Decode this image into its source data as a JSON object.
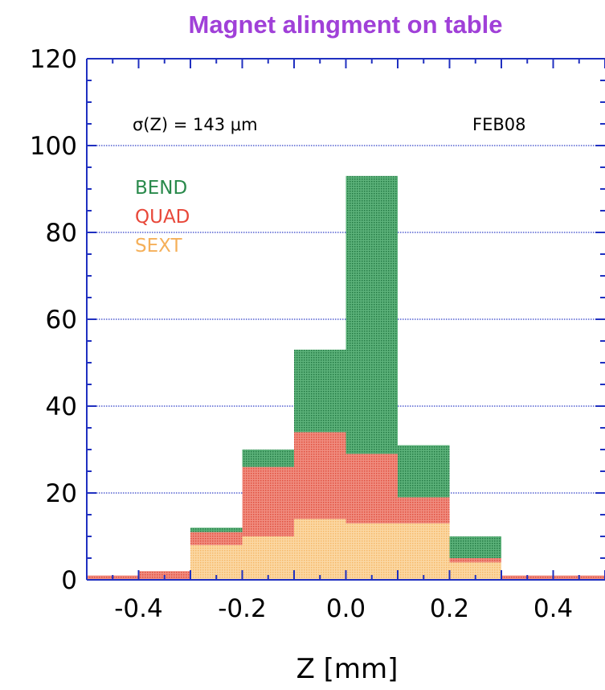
{
  "chart_data": {
    "type": "bar",
    "title": "Magnet alingment on table",
    "xlabel": "Z [mm]",
    "ylabel": "",
    "xlim": [
      -0.5,
      0.5
    ],
    "ylim": [
      0,
      120
    ],
    "x_ticks": [
      "-0.4",
      "-0.2",
      "0.0",
      "0.2",
      "0.4"
    ],
    "x_tick_values": [
      -0.4,
      -0.2,
      0.0,
      0.2,
      0.4
    ],
    "y_ticks": [
      "0",
      "20",
      "40",
      "60",
      "80",
      "100",
      "120"
    ],
    "y_tick_values": [
      0,
      20,
      40,
      60,
      80,
      100,
      120
    ],
    "grid": "horizontal dotted",
    "stacked": true,
    "bin_edges": [
      -0.5,
      -0.4,
      -0.3,
      -0.2,
      -0.1,
      0.0,
      0.1,
      0.2,
      0.3,
      0.4,
      0.5
    ],
    "series": [
      {
        "name": "SEXT",
        "values": [
          0,
          0,
          8,
          10,
          14,
          13,
          13,
          4,
          0,
          0
        ]
      },
      {
        "name": "QUAD",
        "values": [
          1,
          2,
          3,
          16,
          20,
          16,
          6,
          1,
          1,
          1
        ]
      },
      {
        "name": "BEND",
        "values": [
          0,
          0,
          1,
          4,
          19,
          64,
          12,
          5,
          0,
          0
        ]
      }
    ],
    "annotations": {
      "sigma": "σ(Z) = 143 μm",
      "date": "FEB08"
    },
    "legend_placement": "top-left",
    "colors": {
      "title": "#a040d8",
      "axis": "#2030c0",
      "grid": "#3040c8",
      "BEND": "#3a9a5c",
      "QUAD": "#e86a5a",
      "SEXT": "#f9c47e",
      "BEND_text": "#2a8a4c",
      "QUAD_text": "#e8483a",
      "SEXT_text": "#f5b05a"
    }
  }
}
